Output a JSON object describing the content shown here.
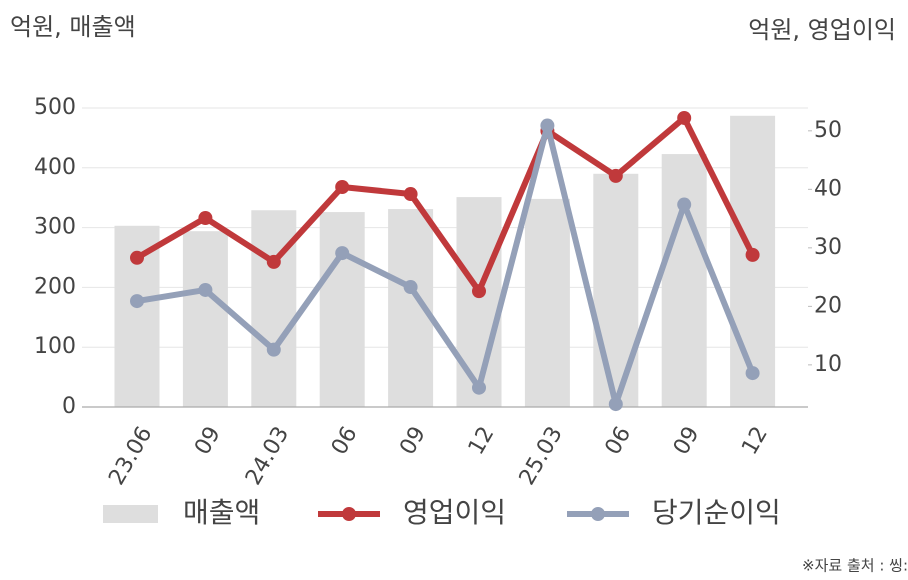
{
  "chart_data": {
    "type": "combo",
    "y_axis_label": "억원, 매출액",
    "y2_axis_label": "억원, 영업이익",
    "source": "※자료 출처 : 씽:",
    "categories": [
      "23.06",
      "09",
      "24.03",
      "06",
      "09",
      "12",
      "25.03",
      "06",
      "09",
      "12"
    ],
    "series": [
      {
        "name": "매출액",
        "type": "bar",
        "color": "#dedede",
        "values": [
          303,
          294,
          329,
          326,
          331,
          351,
          348,
          390,
          423,
          487
        ]
      },
      {
        "name": "영업이익",
        "type": "line",
        "axis": "y2",
        "color": "#c0393b",
        "values": [
          28.3,
          35.1,
          27.6,
          40.4,
          39.2,
          22.6,
          50.0,
          42.3,
          52.2,
          28.8
        ]
      },
      {
        "name": "당기순이익",
        "type": "line",
        "axis": "y2",
        "color": "#94a0b8",
        "values": [
          20.9,
          22.8,
          12.6,
          29.1,
          23.3,
          6.1,
          50.9,
          3.3,
          37.4,
          8.6
        ]
      }
    ],
    "ylim": [
      0,
      500
    ],
    "yticks": [
      0,
      100,
      200,
      300,
      400,
      500
    ],
    "y2lim": [
      2.8,
      53.9
    ],
    "y2ticks": [
      10,
      20,
      30,
      40,
      50
    ],
    "grid": true
  }
}
